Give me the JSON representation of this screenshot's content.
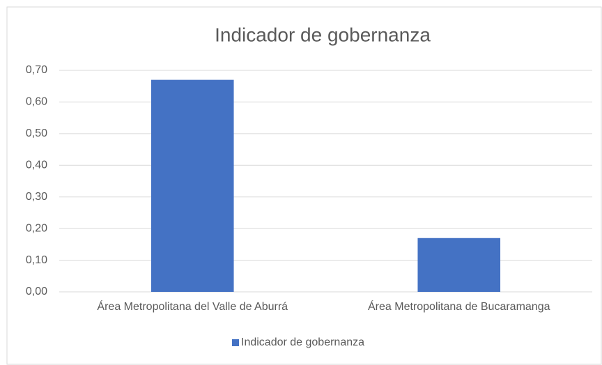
{
  "chart_data": {
    "type": "bar",
    "title": "Indicador de gobernanza",
    "categories": [
      "Área Metropolitana del Valle de Aburrá",
      "Área Metropolitana de Bucaramanga"
    ],
    "series": [
      {
        "name": "Indicador de gobernanza",
        "color": "#4472c4",
        "values": [
          0.67,
          0.17
        ]
      }
    ],
    "ylim": [
      0,
      0.7
    ],
    "yticks": [
      {
        "value": 0,
        "label": "0,00"
      },
      {
        "value": 0.1,
        "label": "0,10"
      },
      {
        "value": 0.2,
        "label": "0,20"
      },
      {
        "value": 0.3,
        "label": "0,30"
      },
      {
        "value": 0.4,
        "label": "0,40"
      },
      {
        "value": 0.5,
        "label": "0,50"
      },
      {
        "value": 0.6,
        "label": "0,60"
      },
      {
        "value": 0.7,
        "label": "0,70"
      }
    ],
    "grid": true,
    "legend": "bottom"
  }
}
